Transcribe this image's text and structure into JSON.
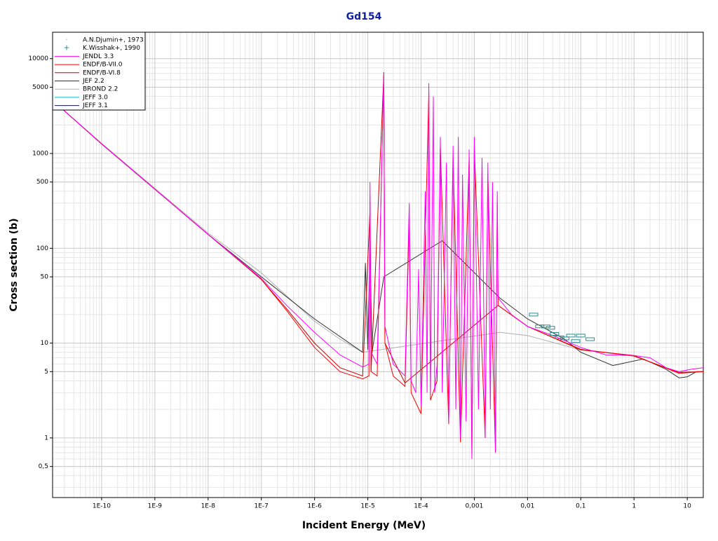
{
  "chart_data": {
    "type": "line",
    "title": "Gd154",
    "x_label": "Incident Energy (MeV)",
    "y_label": "Cross section (b)",
    "xscale": "log",
    "yscale": "log",
    "grid": true,
    "legend": "upper-left",
    "xlim": [
      1.2e-11,
      20
    ],
    "ylim": [
      0.235,
      19000
    ],
    "xticks": [
      {
        "value": 1e-10,
        "label": "1E-10"
      },
      {
        "value": 1e-09,
        "label": "1E-9"
      },
      {
        "value": 1e-08,
        "label": "1E-8"
      },
      {
        "value": 1e-07,
        "label": "1E-7"
      },
      {
        "value": 1e-06,
        "label": "1E-6"
      },
      {
        "value": 1e-05,
        "label": "1E-5"
      },
      {
        "value": 0.0001,
        "label": "1E-4"
      },
      {
        "value": 0.001,
        "label": "0,001"
      },
      {
        "value": 0.01,
        "label": "0,01"
      },
      {
        "value": 0.1,
        "label": "0,1"
      },
      1,
      10
    ],
    "yticks": [
      {
        "value": 0.5,
        "label": "0,5"
      },
      1,
      5,
      10,
      50,
      100,
      500,
      1000,
      5000,
      10000
    ],
    "series": [
      {
        "name": "A.N.Djumin+, 1973",
        "type": "scatter",
        "color": "#7fb0d0",
        "x": [],
        "values": []
      },
      {
        "name": "K.Wisshak+, 1990",
        "type": "scatter",
        "color": "#2e8b8b",
        "x": [
          0.013,
          0.017,
          0.022,
          0.027,
          0.032,
          0.04,
          0.05,
          0.065,
          0.08,
          0.1,
          0.15
        ],
        "values": [
          20,
          15,
          15,
          14.5,
          12.5,
          11.5,
          11.2,
          12,
          10.5,
          12,
          11
        ]
      },
      {
        "name": "JENDL 3.3",
        "color": "#ff00ff",
        "x": [
          1.5e-11,
          1e-10,
          1e-09,
          1e-08,
          1e-07,
          3e-07,
          1e-06,
          3e-06,
          8e-06,
          1.05e-05,
          1.1e-05,
          1.15e-05,
          1.5e-05,
          2e-05,
          2.1e-05,
          3e-05,
          5e-05,
          6e-05,
          6.5e-05,
          8e-05,
          9e-05,
          0.0001,
          0.00012,
          0.00013,
          0.00014,
          0.00015,
          0.00017,
          0.00018,
          0.0002,
          0.00023,
          0.00025,
          0.0003,
          0.00033,
          0.0004,
          0.00045,
          0.0005,
          0.00055,
          0.0006,
          0.0007,
          0.0008,
          0.0009,
          0.001,
          0.0012,
          0.0014,
          0.0016,
          0.0018,
          0.002,
          0.0022,
          0.0025,
          0.0027,
          0.0028,
          0.005,
          0.01,
          0.03,
          0.1,
          0.3,
          1,
          2,
          4,
          7,
          12,
          20
        ],
        "values": [
          3250,
          1260,
          420,
          140,
          48,
          25,
          13,
          7.5,
          5.6,
          6,
          500,
          8,
          6,
          7000,
          15,
          6,
          4.5,
          300,
          4,
          3,
          60,
          2.2,
          400,
          3,
          5500,
          3,
          4000,
          3,
          6,
          1500,
          3,
          800,
          1.5,
          1200,
          2,
          1500,
          1,
          600,
          1.5,
          1100,
          0.6,
          1500,
          2,
          900,
          1,
          800,
          2,
          500,
          0.7,
          400,
          30,
          20,
          15,
          12,
          9,
          7.5,
          7.4,
          7,
          5.5,
          5,
          5.3,
          5.5
        ]
      },
      {
        "name": "ENDF/B-VII.0",
        "color": "#ff0000",
        "x": [
          1.5e-11,
          1e-10,
          1e-09,
          1e-08,
          1e-07,
          3e-07,
          1e-06,
          3e-06,
          8e-06,
          1.05e-05,
          1.1e-05,
          1.15e-05,
          1.5e-05,
          2e-05,
          2.1e-05,
          3e-05,
          5e-05,
          6e-05,
          6.5e-05,
          0.0001,
          0.00014,
          0.00015,
          0.0002,
          0.00023,
          0.00033,
          0.0004,
          0.00055,
          0.0008,
          0.0009,
          0.001,
          0.0016,
          0.0018,
          0.0025,
          0.0027,
          0.0028,
          0.01,
          0.1,
          1,
          7,
          20
        ],
        "values": [
          3250,
          1260,
          420,
          140,
          47,
          22,
          9,
          5,
          4.2,
          4.5,
          300,
          5,
          4.5,
          7200,
          10,
          4.5,
          3.5,
          200,
          3,
          1.8,
          4500,
          2.5,
          4,
          1200,
          1.4,
          900,
          0.9,
          900,
          0.6,
          1200,
          1,
          600,
          0.7,
          300,
          25,
          15,
          8.5,
          7.4,
          4.8,
          5
        ]
      },
      {
        "name": "ENDF/B-VI.8",
        "color": "#cc0000",
        "x": [
          1.5e-11,
          1e-10,
          1e-09,
          1e-08,
          1e-07,
          3e-07,
          1e-06,
          3e-06,
          8e-06,
          1.1e-05,
          1.15e-05,
          2e-05,
          2.1e-05,
          5e-05,
          0.0028,
          0.01,
          0.1,
          1,
          7,
          20
        ],
        "values": [
          3250,
          1260,
          420,
          140,
          47,
          23,
          10,
          5.5,
          4.5,
          250,
          5,
          6800,
          10,
          3.8,
          25,
          15,
          8.6,
          7.3,
          4.9,
          5
        ]
      },
      {
        "name": "JEF 2.2",
        "color": "#333333",
        "x": [
          1.5e-11,
          1e-10,
          1e-09,
          1e-08,
          1e-07,
          1e-06,
          8e-06,
          9e-06,
          1e-05,
          1.1e-05,
          1.2e-05,
          2e-05,
          0.00025,
          0.003,
          0.01,
          0.05,
          0.1,
          0.4,
          1.5,
          4,
          7,
          10,
          15,
          20
        ],
        "values": [
          3250,
          1260,
          420,
          140,
          50,
          18,
          8,
          70,
          8.5,
          100,
          8,
          50,
          120,
          30,
          18,
          11,
          8,
          5.8,
          6.8,
          5.3,
          4.3,
          4.4,
          5,
          5
        ]
      },
      {
        "name": "BROND 2.2",
        "color": "#b0b0b0",
        "x": [
          1.5e-11,
          1e-10,
          1e-09,
          1e-08,
          1e-07,
          1e-06,
          3e-06,
          8e-06,
          0.003,
          0.01,
          0.1,
          1,
          7,
          20
        ],
        "values": [
          3250,
          1280,
          430,
          145,
          55,
          17,
          11,
          8,
          13,
          12,
          8.5,
          7.3,
          4.9,
          5
        ]
      },
      {
        "name": "JEFF 3.0",
        "color": "#00c0c0",
        "x": [
          1.5e-11,
          1e-10,
          1e-09,
          1e-08,
          1e-07
        ],
        "values": [
          3250,
          1260,
          420,
          140,
          48
        ]
      },
      {
        "name": "JEFF 3.1",
        "color": "#101050",
        "x": [
          1.5e-11,
          1e-10,
          1e-09,
          1e-08,
          1e-07
        ],
        "values": [
          3250,
          1260,
          420,
          140,
          48
        ]
      }
    ]
  }
}
